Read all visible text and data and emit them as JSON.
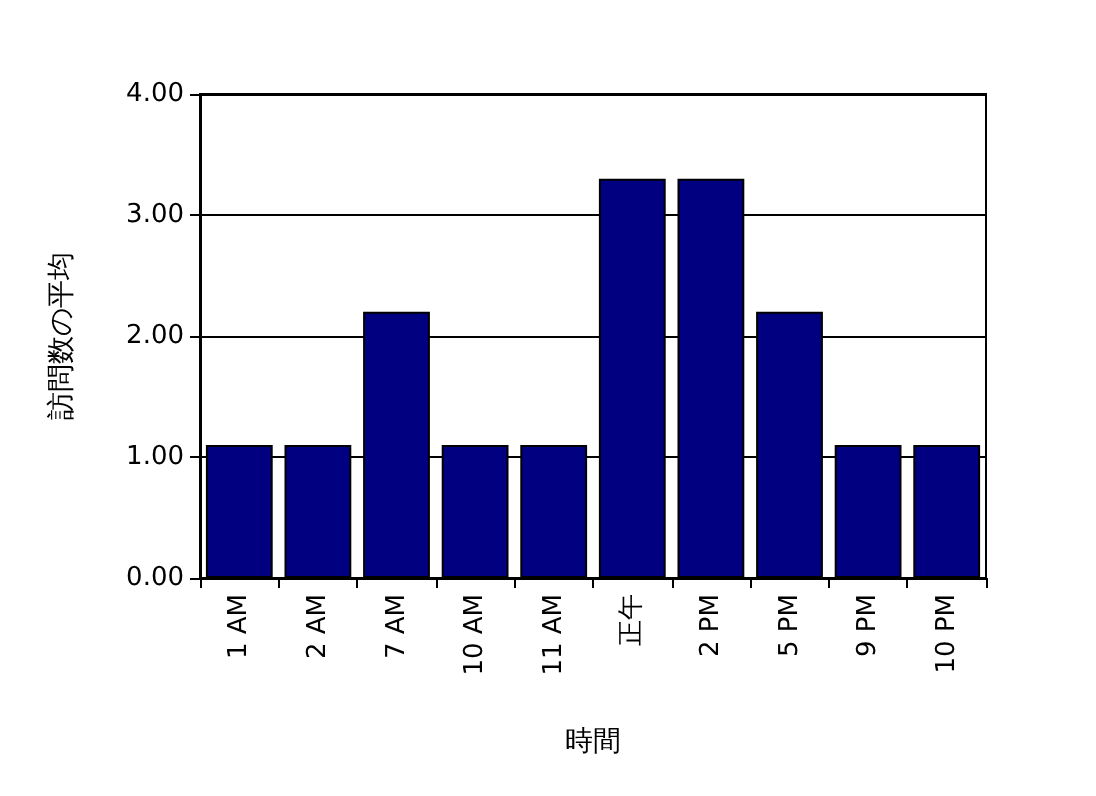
{
  "chart_data": {
    "type": "bar",
    "xlabel": "時間",
    "ylabel": "訪問数の平均",
    "categories": [
      "1 AM",
      "2 AM",
      "7 AM",
      "10 AM",
      "11 AM",
      "正午",
      "2 PM",
      "5 PM",
      "9 PM",
      "10 PM"
    ],
    "values": [
      1.1,
      1.1,
      2.2,
      1.1,
      1.1,
      3.3,
      3.3,
      2.2,
      1.1,
      1.1
    ],
    "color": "#000080",
    "ylim": [
      0,
      4
    ],
    "yticks": [
      {
        "value": 0,
        "label": "0.00"
      },
      {
        "value": 1,
        "label": "1.00"
      },
      {
        "value": 2,
        "label": "2.00"
      },
      {
        "value": 3,
        "label": "3.00"
      },
      {
        "value": 4,
        "label": "4.00"
      }
    ],
    "grid": "y"
  }
}
